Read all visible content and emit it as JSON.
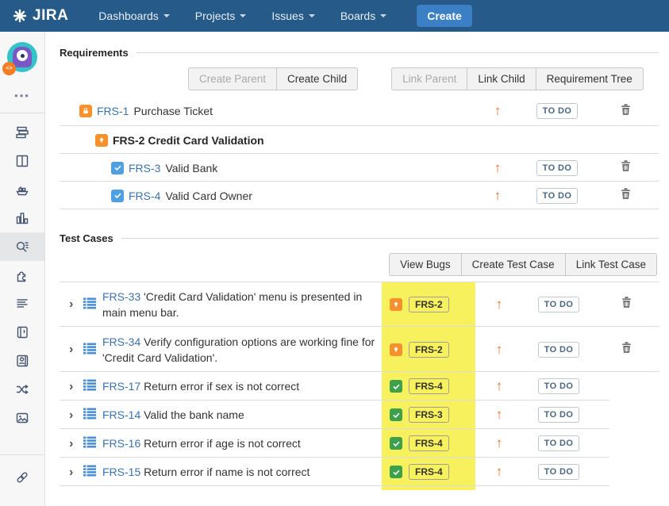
{
  "nav": {
    "logo_text": "JIRA",
    "items": [
      {
        "label": "Dashboards"
      },
      {
        "label": "Projects"
      },
      {
        "label": "Issues"
      },
      {
        "label": "Boards"
      }
    ],
    "create_label": "Create"
  },
  "sidebar": {
    "avatar_badge": "<>",
    "more_icon": "•••",
    "icons": [
      {
        "name": "backlog-icon"
      },
      {
        "name": "board-icon"
      },
      {
        "name": "releases-icon"
      },
      {
        "name": "reports-icon"
      },
      {
        "name": "requirements-icon",
        "selected": true
      },
      {
        "name": "addons-icon"
      },
      {
        "name": "pages-icon"
      },
      {
        "name": "journal-icon"
      },
      {
        "name": "contacts-icon"
      },
      {
        "name": "shuffle-icon"
      },
      {
        "name": "media-icon"
      }
    ],
    "bottom_icons": [
      {
        "name": "link-icon"
      }
    ]
  },
  "requirements": {
    "title": "Requirements",
    "button_groups": [
      [
        {
          "label": "Create Parent",
          "disabled": true
        },
        {
          "label": "Create Child",
          "disabled": false
        }
      ],
      [
        {
          "label": "Link Parent",
          "disabled": true
        },
        {
          "label": "Link Child",
          "disabled": false
        },
        {
          "label": "Requirement Tree",
          "disabled": false
        }
      ]
    ],
    "rows": [
      {
        "key": "FRS-1",
        "summary": "Purchase Ticket",
        "icon": "lock-icon",
        "icon_color": "orange",
        "indent": 0,
        "link": true,
        "bold": false,
        "arrow": "up",
        "status": "TO DO",
        "trash": true
      },
      {
        "key": "FRS-2",
        "summary": "Credit Card Validation",
        "icon": "bulb-icon",
        "icon_color": "orange",
        "indent": 1,
        "link": false,
        "bold": true,
        "arrow": null,
        "status": null,
        "trash": false
      },
      {
        "key": "FRS-3",
        "summary": "Valid Bank",
        "icon": "check-icon",
        "icon_color": "blue",
        "indent": 2,
        "link": true,
        "bold": false,
        "arrow": "up",
        "status": "TO DO",
        "trash": true
      },
      {
        "key": "FRS-4",
        "summary": "Valid Card Owner",
        "icon": "check-icon",
        "icon_color": "blue",
        "indent": 2,
        "link": true,
        "bold": false,
        "arrow": "up",
        "status": "TO DO",
        "trash": true
      }
    ]
  },
  "test_cases": {
    "title": "Test Cases",
    "buttons": [
      {
        "label": "View Bugs",
        "disabled": false
      },
      {
        "label": "Create Test Case",
        "disabled": false
      },
      {
        "label": "Link Test Case",
        "disabled": false
      }
    ],
    "rows": [
      {
        "key": "FRS-33",
        "summary": "'Credit Card Validation' menu is presented in main menu bar.",
        "linked_key": "FRS-2",
        "linked_icon": "bulb-icon",
        "linked_color": "orange",
        "arrow": "up",
        "status": "TO DO",
        "trash": true
      },
      {
        "key": "FRS-34",
        "summary": "Verify configuration options are working fine for 'Credit Card Validation'.",
        "linked_key": "FRS-2",
        "linked_icon": "bulb-icon",
        "linked_color": "orange",
        "arrow": "up",
        "status": "TO DO",
        "trash": true
      },
      {
        "key": "FRS-17",
        "summary": "Return error if sex is not correct",
        "linked_key": "FRS-4",
        "linked_icon": "check-icon",
        "linked_color": "green",
        "arrow": "up",
        "status": "TO DO",
        "trash": false
      },
      {
        "key": "FRS-14",
        "summary": "Valid the bank name",
        "linked_key": "FRS-3",
        "linked_icon": "check-icon",
        "linked_color": "green",
        "arrow": "up",
        "status": "TO DO",
        "trash": false
      },
      {
        "key": "FRS-16",
        "summary": "Return error if age is not correct",
        "linked_key": "FRS-4",
        "linked_icon": "check-icon",
        "linked_color": "green",
        "arrow": "up",
        "status": "TO DO",
        "trash": false
      },
      {
        "key": "FRS-15",
        "summary": "Return error if name is not correct",
        "linked_key": "FRS-4",
        "linked_icon": "check-icon",
        "linked_color": "green",
        "arrow": "up",
        "status": "TO DO",
        "trash": false
      }
    ]
  },
  "colors": {
    "nav_bg": "#265a88",
    "create_button": "#3b7fc4",
    "link_blue": "#3b73af",
    "arrow_orange": "#ea7125",
    "issue_type_orange": "#f6912e",
    "issue_type_blue": "#4f9fe3",
    "issue_type_green": "#3da04b",
    "highlight_yellow": "#f5ee3a",
    "status_text": "#4a6785"
  }
}
